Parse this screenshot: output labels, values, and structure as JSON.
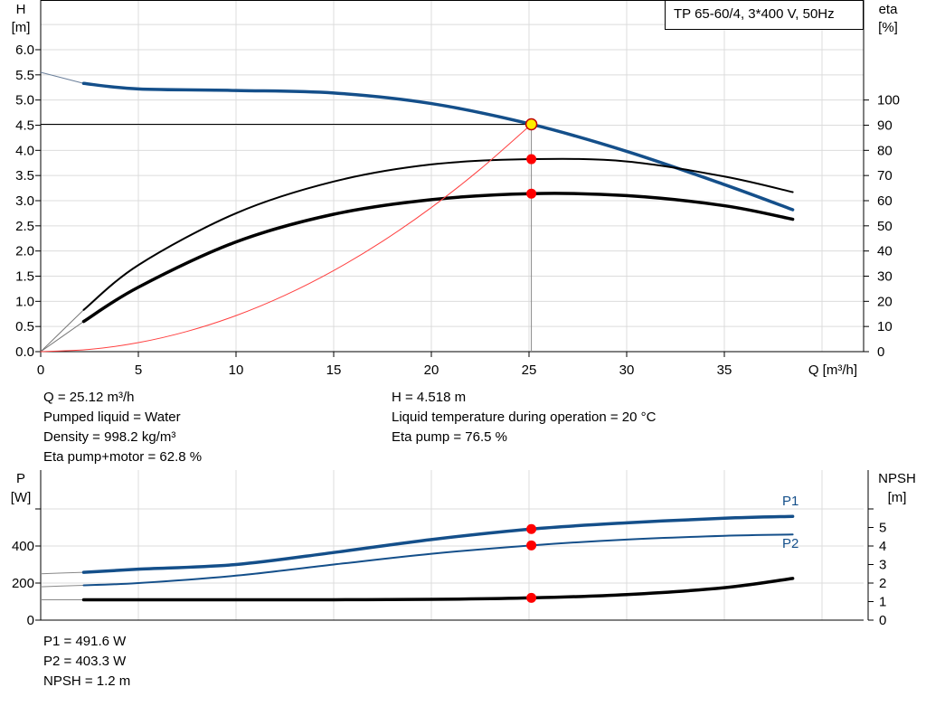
{
  "chart_data": [
    {
      "type": "line",
      "title": "TP 65-60/4, 3*400 V, 50Hz",
      "xlabel": "Q [m³/h]",
      "ylabel_left": [
        "H",
        "[m]"
      ],
      "ylabel_right": [
        "eta",
        "[%]"
      ],
      "xlim": [
        0,
        42
      ],
      "ylim_left": [
        0,
        7
      ],
      "ylim_right": [
        0,
        140
      ],
      "x_ticks": [
        "0",
        "5",
        "10",
        "15",
        "20",
        "25",
        "30",
        "35"
      ],
      "y_ticks_left": [
        "0.0",
        "0.5",
        "1.0",
        "1.5",
        "2.0",
        "2.5",
        "3.0",
        "3.5",
        "4.0",
        "4.5",
        "5.0",
        "5.5",
        "6.0"
      ],
      "y_ticks_right": [
        "0",
        "10",
        "20",
        "30",
        "40",
        "50",
        "60",
        "70",
        "80",
        "90",
        "100"
      ],
      "grid": true,
      "series": [
        {
          "key": "head",
          "axis": "left",
          "color": "#144f8a",
          "x": [
            2.2,
            5,
            10,
            15,
            20,
            25.12,
            30,
            35,
            38.5
          ],
          "y": [
            5.33,
            5.22,
            5.19,
            5.14,
            4.93,
            4.518,
            3.98,
            3.32,
            2.82
          ],
          "extrapolated": {
            "x": [
              0,
              2.2
            ],
            "y": [
              5.55,
              5.33
            ]
          }
        },
        {
          "key": "eta_pump",
          "axis": "right",
          "color": "#000000",
          "x": [
            2.2,
            5,
            10,
            15,
            20,
            25.12,
            30,
            35,
            38.5
          ],
          "y": [
            16.6,
            34.4,
            55,
            67.6,
            74.4,
            76.5,
            75.6,
            69.6,
            63.4
          ],
          "extrapolated": {
            "x": [
              0,
              2.2
            ],
            "y": [
              0,
              16.6
            ]
          }
        },
        {
          "key": "eta_pump_motor",
          "axis": "right",
          "color": "#000000",
          "x": [
            2.2,
            5,
            10,
            15,
            20,
            25.12,
            30,
            35,
            38.5
          ],
          "y": [
            12,
            25.6,
            43.6,
            54.6,
            60.4,
            62.8,
            62,
            58,
            52.6
          ],
          "extrapolated": {
            "x": [
              0,
              2.2
            ],
            "y": [
              0,
              12
            ]
          }
        },
        {
          "key": "system",
          "axis": "left",
          "color": "#ff4040",
          "x": [
            0,
            2.5,
            5,
            7.5,
            10,
            12.5,
            15,
            17.5,
            20,
            22.5,
            25.12
          ],
          "y": [
            0,
            0.045,
            0.179,
            0.403,
            0.716,
            1.119,
            1.611,
            2.193,
            2.864,
            3.625,
            4.518
          ]
        }
      ],
      "duty_point": {
        "x": 25.12,
        "y": 4.518,
        "color": "#ffee00"
      },
      "markers": [
        {
          "x": 25.12,
          "eta": 76.5
        },
        {
          "x": 25.12,
          "eta": 62.8
        }
      ]
    },
    {
      "type": "line",
      "xlabel": "",
      "ylabel_left": [
        "P",
        "[W]"
      ],
      "ylabel_right": [
        "NPSH",
        "[m]"
      ],
      "xlim": [
        0,
        42
      ],
      "ylim_left": [
        0,
        810
      ],
      "ylim_right": [
        0,
        8.1
      ],
      "y_ticks_left": [
        "0",
        "200",
        "400"
      ],
      "y_ticks_right": [
        "0",
        "1",
        "2",
        "3",
        "4",
        "5"
      ],
      "grid": true,
      "series": [
        {
          "name": "P1",
          "axis": "left",
          "color": "#144f8a",
          "x": [
            2.2,
            5,
            10,
            15,
            20,
            25.12,
            30,
            35,
            38.5
          ],
          "y": [
            258,
            275,
            300,
            365,
            435,
            491.6,
            525,
            550,
            560
          ],
          "extrapolated": {
            "x": [
              0,
              2.2
            ],
            "y": [
              250,
              258
            ]
          }
        },
        {
          "name": "P2",
          "axis": "left",
          "color": "#144f8a",
          "x": [
            2.2,
            5,
            10,
            15,
            20,
            25.12,
            30,
            35,
            38.5
          ],
          "y": [
            188,
            200,
            240,
            300,
            358,
            403.3,
            435,
            455,
            462
          ],
          "extrapolated": {
            "x": [
              0,
              2.2
            ],
            "y": [
              180,
              188
            ]
          }
        },
        {
          "key": "npsh",
          "axis": "right",
          "color": "#000000",
          "x": [
            2.2,
            5,
            10,
            15,
            20,
            25.12,
            30,
            35,
            38.5
          ],
          "y": [
            1.1,
            1.1,
            1.1,
            1.1,
            1.12,
            1.2,
            1.38,
            1.75,
            2.25
          ],
          "extrapolated": {
            "x": [
              0,
              2.2
            ],
            "y": [
              1.1,
              1.1
            ]
          }
        }
      ],
      "markers": [
        {
          "x": 25.12,
          "y": 491.6
        },
        {
          "x": 25.12,
          "y": 403.3
        },
        {
          "x": 25.12,
          "npsh": 1.2
        }
      ]
    }
  ],
  "info_top": {
    "q": "Q = 25.12 m³/h",
    "liquid": "Pumped liquid = Water",
    "density": "Density = 998.2 kg/m³",
    "eta_pm": "Eta pump+motor = 62.8 %",
    "h": "H = 4.518 m",
    "temp": "Liquid temperature during operation = 20 °C",
    "eta_p": "Eta pump = 76.5 %"
  },
  "info_bottom": {
    "p1": "P1 = 491.6 W",
    "p2": "P2 = 403.3 W",
    "npsh": "NPSH = 1.2 m"
  }
}
